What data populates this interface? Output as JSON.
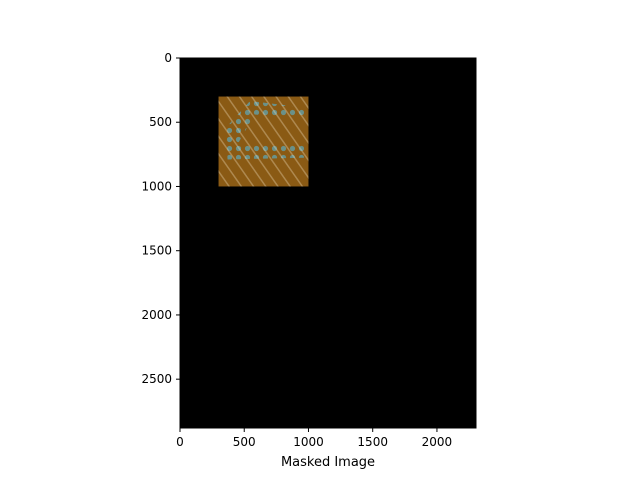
{
  "chart_data": {
    "type": "image",
    "xlabel": "Masked Image",
    "ylabel": "",
    "title": "",
    "image_extent": {
      "width": 2304,
      "height": 2880
    },
    "xlim": [
      0,
      2304
    ],
    "ylim": [
      2880,
      0
    ],
    "x_ticks": [
      0,
      500,
      1000,
      1500,
      2000
    ],
    "y_ticks": [
      0,
      500,
      1000,
      1500,
      2000,
      2500
    ],
    "unmasked_region": {
      "x": [
        300,
        1000
      ],
      "y": [
        300,
        1000
      ]
    },
    "background_color": "#000000",
    "region_colors": {
      "base": "#8a5a14",
      "highlight": "#c48a2a",
      "pattern": "#5fa3b0"
    }
  }
}
